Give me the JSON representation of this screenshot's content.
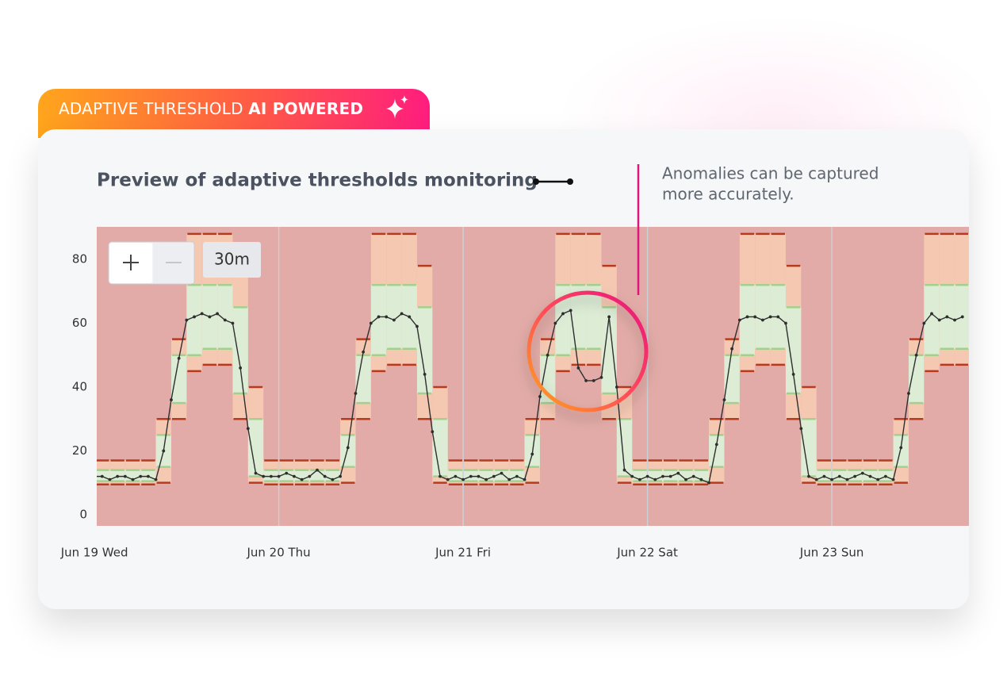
{
  "badge": {
    "label": "ADAPTIVE THRESHOLD",
    "highlight": "AI POWERED"
  },
  "annotation": [
    "Anomalies can be captured",
    "more accurately."
  ],
  "zoom_interval": "30m",
  "chart_data": {
    "type": "threshold_band",
    "title": "Preview of adaptive thresholds monitoring",
    "x": [
      0,
      1,
      2,
      3,
      4,
      5,
      6,
      7,
      8,
      9,
      10,
      11,
      12,
      13,
      14,
      15,
      16,
      17,
      18,
      19,
      20,
      21,
      22,
      23,
      24,
      25,
      26,
      27,
      28,
      29,
      30,
      31,
      32,
      33,
      34,
      35,
      36,
      37,
      38,
      39,
      40,
      41,
      42,
      43,
      44,
      45,
      46,
      47,
      48,
      49,
      50,
      51,
      52,
      53,
      54,
      55,
      56,
      57,
      58,
      59,
      60,
      61,
      62,
      63,
      64,
      65,
      66,
      67,
      68,
      69,
      70,
      71,
      72,
      73,
      74,
      75,
      76,
      77,
      78,
      79,
      80,
      81,
      82,
      83,
      84,
      85,
      86,
      87,
      88,
      89,
      90,
      91,
      92,
      93,
      94,
      95,
      96,
      97,
      98,
      99,
      100,
      101,
      102,
      103,
      104,
      105,
      106,
      107,
      108,
      109,
      110,
      111,
      112,
      113
    ],
    "values": [
      12,
      12,
      11,
      12,
      12,
      11,
      12,
      12,
      11,
      20,
      36,
      49,
      61,
      62,
      63,
      62,
      63,
      61,
      60,
      46,
      27,
      13,
      12,
      12,
      12,
      13,
      12,
      11,
      12,
      14,
      12,
      11,
      12,
      21,
      38,
      51,
      60,
      62,
      62,
      61,
      63,
      62,
      59,
      44,
      26,
      12,
      11,
      12,
      11,
      12,
      12,
      11,
      12,
      13,
      11,
      12,
      11,
      19,
      37,
      50,
      60,
      63,
      64,
      46,
      42,
      42,
      43,
      62,
      40,
      14,
      12,
      11,
      12,
      11,
      12,
      12,
      13,
      11,
      12,
      11,
      10,
      22,
      36,
      52,
      61,
      62,
      62,
      61,
      62,
      62,
      60,
      44,
      27,
      12,
      11,
      12,
      11,
      12,
      11,
      12,
      13,
      12,
      11,
      12,
      11,
      21,
      38,
      50,
      60,
      63,
      61,
      62,
      61,
      62
    ],
    "line_color": "#2e2e2e",
    "xlim": [
      0.3,
      113.85
    ],
    "xticks": [
      {
        "value": 0,
        "label": "Jun 19 Wed"
      },
      {
        "value": 24,
        "label": "Jun 20 Thu"
      },
      {
        "value": 48,
        "label": "Jun 21 Fri"
      },
      {
        "value": 72,
        "label": "Jun 22 Sat"
      },
      {
        "value": 96,
        "label": "Jun 23 Sun"
      }
    ],
    "ylim": [
      -3.5,
      90.2
    ],
    "yticks": [
      0,
      20,
      40,
      60,
      80
    ],
    "grid": true,
    "background_color": "#e2aba7",
    "outer_color": "#f5c8b2",
    "inner_color": "#dcecd5",
    "outer_edge_color": "#b83a1e",
    "inner_edge_color": "#a5cf8c",
    "threshold_x": [
      0,
      2,
      4,
      6,
      8,
      10,
      12,
      14,
      16,
      18,
      20,
      22,
      24,
      26,
      28,
      30,
      32,
      34,
      36,
      38,
      40,
      42,
      44,
      46,
      48,
      50,
      52,
      54,
      56,
      58,
      60,
      62,
      64,
      66,
      68,
      70,
      72,
      74,
      76,
      78,
      80,
      82,
      84,
      86,
      88,
      90,
      92,
      94,
      96,
      98,
      100,
      102,
      104,
      106,
      108,
      110,
      112
    ],
    "outer_lower": [
      9.5,
      9.5,
      9.5,
      9.5,
      10,
      30,
      45,
      47,
      47,
      30,
      10,
      9.5,
      9.5,
      9.5,
      9.5,
      9.5,
      10,
      30,
      45,
      47,
      47,
      30,
      10,
      9.5,
      9.5,
      9.5,
      9.5,
      9.5,
      10,
      30,
      45,
      47,
      47,
      30,
      10,
      9.5,
      9.5,
      9.5,
      9.5,
      9.5,
      10,
      30,
      45,
      47,
      47,
      30,
      10,
      9.5,
      9.5,
      9.5,
      9.5,
      9.5,
      10,
      30,
      45,
      47,
      47
    ],
    "outer_upper": [
      17,
      17,
      17,
      17,
      30,
      55,
      88,
      88,
      88,
      78,
      40,
      17,
      17,
      17,
      17,
      17,
      30,
      55,
      88,
      88,
      88,
      78,
      40,
      17,
      17,
      17,
      17,
      17,
      30,
      55,
      88,
      88,
      88,
      78,
      40,
      17,
      17,
      17,
      17,
      17,
      30,
      55,
      88,
      88,
      88,
      78,
      40,
      17,
      17,
      17,
      17,
      17,
      30,
      55,
      88,
      88,
      88
    ],
    "inner_lower": [
      10.5,
      10.5,
      10.5,
      10.5,
      15,
      35,
      50,
      52,
      52,
      38,
      12,
      10.5,
      10.5,
      10.5,
      10.5,
      10.5,
      15,
      35,
      50,
      52,
      52,
      38,
      12,
      10.5,
      10.5,
      10.5,
      10.5,
      10.5,
      15,
      35,
      50,
      52,
      52,
      38,
      12,
      10.5,
      10.5,
      10.5,
      10.5,
      10.5,
      15,
      35,
      50,
      52,
      52,
      38,
      12,
      10.5,
      10.5,
      10.5,
      10.5,
      10.5,
      15,
      35,
      50,
      52,
      52
    ],
    "inner_upper": [
      14,
      14,
      14,
      14,
      25,
      50,
      72,
      72,
      72,
      65,
      30,
      14,
      14,
      14,
      14,
      14,
      25,
      50,
      72,
      72,
      72,
      65,
      30,
      14,
      14,
      14,
      14,
      14,
      25,
      50,
      72,
      72,
      72,
      65,
      30,
      14,
      14,
      14,
      14,
      14,
      25,
      50,
      72,
      72,
      72,
      65,
      30,
      14,
      14,
      14,
      14,
      14,
      25,
      50,
      72,
      72,
      72
    ]
  }
}
